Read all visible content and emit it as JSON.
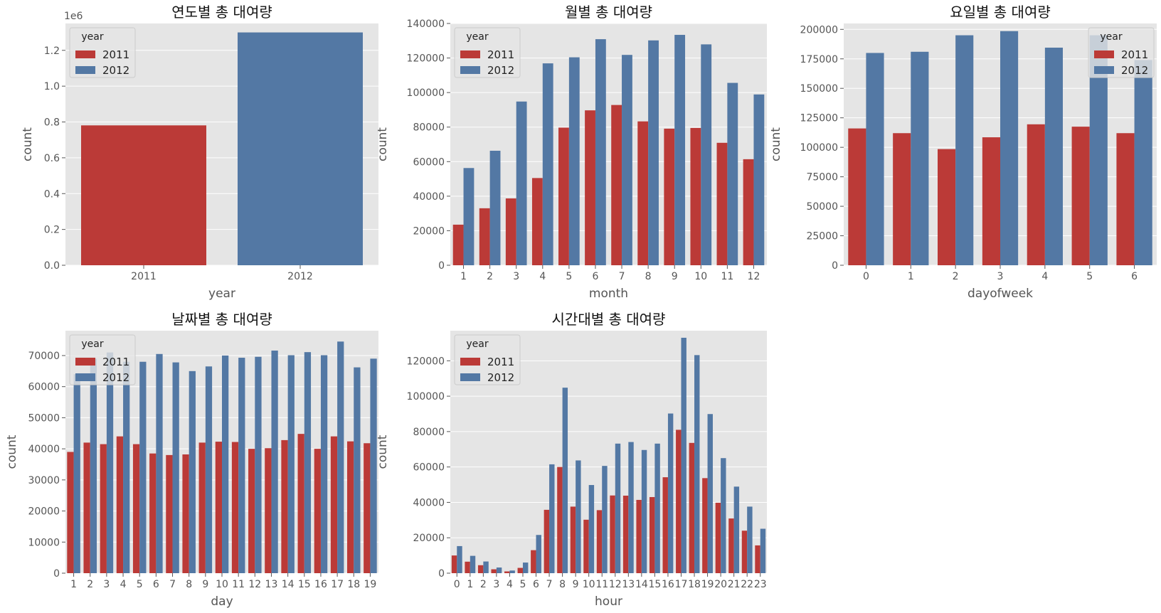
{
  "colors": {
    "2011": "#bb3a37",
    "2012": "#5378a4",
    "panel_bg": "#e5e5e5",
    "grid": "#ffffff",
    "tick_text": "#555555",
    "title_text": "#111111"
  },
  "chart_data": [
    {
      "id": "yearly",
      "type": "bar",
      "title": "연도별 총 대여량",
      "xlabel": "year",
      "ylabel": "count",
      "ylim": [
        0,
        1350000
      ],
      "yticks": [
        0,
        200000,
        400000,
        600000,
        800000,
        1000000,
        1200000
      ],
      "ytick_labels": [
        "0.0",
        "0.2",
        "0.4",
        "0.6",
        "0.8",
        "1.0",
        "1.2"
      ],
      "y_offset_label": "1e6",
      "categories": [
        "2011",
        "2012"
      ],
      "mode": "single",
      "series": [
        {
          "name": "2011",
          "values": [
            781000,
            null
          ]
        },
        {
          "name": "2012",
          "values": [
            null,
            1300000
          ]
        }
      ],
      "legend": {
        "title": "year",
        "position": "top-left"
      },
      "grid": true
    },
    {
      "id": "monthly",
      "type": "bar",
      "title": "월별 총 대여량",
      "xlabel": "month",
      "ylabel": "count",
      "ylim": [
        0,
        140000
      ],
      "yticks": [
        0,
        20000,
        40000,
        60000,
        80000,
        100000,
        120000,
        140000
      ],
      "ytick_labels": [
        "0",
        "20000",
        "40000",
        "60000",
        "80000",
        "100000",
        "120000",
        "140000"
      ],
      "categories": [
        "1",
        "2",
        "3",
        "4",
        "5",
        "6",
        "7",
        "8",
        "9",
        "10",
        "11",
        "12"
      ],
      "mode": "grouped",
      "series": [
        {
          "name": "2011",
          "values": [
            23500,
            33000,
            38700,
            50500,
            79700,
            89700,
            92800,
            83300,
            79100,
            79500,
            70900,
            61400
          ]
        },
        {
          "name": "2012",
          "values": [
            56300,
            66300,
            94800,
            116900,
            120400,
            130900,
            121800,
            130200,
            133400,
            127900,
            105600,
            98900
          ]
        }
      ],
      "legend": {
        "title": "year",
        "position": "top-left"
      },
      "grid": true
    },
    {
      "id": "dayofweek",
      "type": "bar",
      "title": "요일별 총 대여량",
      "xlabel": "dayofweek",
      "ylabel": "count",
      "ylim": [
        0,
        205000
      ],
      "yticks": [
        0,
        25000,
        50000,
        75000,
        100000,
        125000,
        150000,
        175000,
        200000
      ],
      "ytick_labels": [
        "0",
        "25000",
        "50000",
        "75000",
        "100000",
        "125000",
        "150000",
        "175000",
        "200000"
      ],
      "categories": [
        "0",
        "1",
        "2",
        "3",
        "4",
        "5",
        "6"
      ],
      "mode": "grouped",
      "series": [
        {
          "name": "2011",
          "values": [
            116000,
            112000,
            98500,
            108500,
            119500,
            117500,
            112000
          ]
        },
        {
          "name": "2012",
          "values": [
            180000,
            181000,
            195000,
            198500,
            184500,
            195000,
            174000
          ]
        }
      ],
      "legend": {
        "title": "year",
        "position": "top-right"
      },
      "grid": true
    },
    {
      "id": "daily",
      "type": "bar",
      "title": "날짜별 총 대여량",
      "xlabel": "day",
      "ylabel": "count",
      "ylim": [
        0,
        78000
      ],
      "yticks": [
        0,
        10000,
        20000,
        30000,
        40000,
        50000,
        60000,
        70000
      ],
      "ytick_labels": [
        "0",
        "10000",
        "20000",
        "30000",
        "40000",
        "50000",
        "60000",
        "70000"
      ],
      "categories": [
        "1",
        "2",
        "3",
        "4",
        "5",
        "6",
        "7",
        "8",
        "9",
        "10",
        "11",
        "12",
        "13",
        "14",
        "15",
        "16",
        "17",
        "18",
        "19"
      ],
      "mode": "grouped",
      "series": [
        {
          "name": "2011",
          "values": [
            39000,
            42000,
            41500,
            44000,
            41500,
            38500,
            38000,
            38200,
            42000,
            42300,
            42200,
            40000,
            40200,
            42800,
            44800,
            40000,
            44000,
            42400,
            41800
          ]
        },
        {
          "name": "2012",
          "values": [
            64000,
            69000,
            71000,
            68000,
            68000,
            70500,
            67800,
            65000,
            66500,
            70000,
            69300,
            69600,
            71600,
            70100,
            71100,
            70100,
            74500,
            66200,
            69000
          ]
        }
      ],
      "legend": {
        "title": "year",
        "position": "top-left"
      },
      "grid": true
    },
    {
      "id": "hourly",
      "type": "bar",
      "title": "시간대별 총 대여량",
      "xlabel": "hour",
      "ylabel": "count",
      "ylim": [
        0,
        137000
      ],
      "yticks": [
        0,
        20000,
        40000,
        60000,
        80000,
        100000,
        120000
      ],
      "ytick_labels": [
        "0",
        "20000",
        "40000",
        "60000",
        "80000",
        "100000",
        "120000"
      ],
      "categories": [
        "0",
        "1",
        "2",
        "3",
        "4",
        "5",
        "6",
        "7",
        "8",
        "9",
        "10",
        "11",
        "12",
        "13",
        "14",
        "15",
        "16",
        "17",
        "18",
        "19",
        "20",
        "21",
        "22",
        "23"
      ],
      "mode": "grouped",
      "series": [
        {
          "name": "2011",
          "values": [
            10000,
            6500,
            4500,
            2200,
            1000,
            3000,
            13000,
            35800,
            60000,
            37600,
            30200,
            35600,
            43900,
            43800,
            41400,
            43000,
            54200,
            81000,
            73600,
            53700,
            39800,
            30900,
            24000,
            15700
          ]
        },
        {
          "name": "2012",
          "values": [
            15300,
            9800,
            6600,
            3200,
            1500,
            6000,
            21600,
            61500,
            104800,
            63700,
            49800,
            60600,
            73200,
            74100,
            69600,
            73200,
            90200,
            133000,
            123200,
            89900,
            65000,
            48900,
            37600,
            25100
          ]
        }
      ],
      "legend": {
        "title": "year",
        "position": "top-left"
      },
      "grid": true
    }
  ]
}
